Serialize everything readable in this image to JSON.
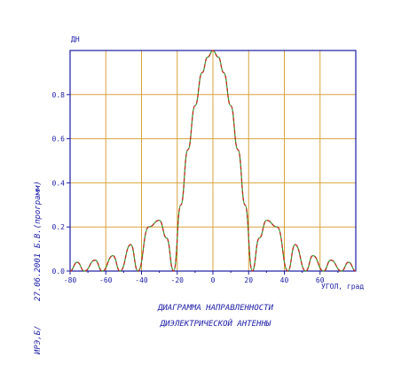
{
  "chart_data": {
    "type": "line",
    "ylabel": "ДН",
    "xlabel": "УГОЛ, град",
    "title_lines": [
      "ДИАГРАММА НАПРАВЛЕННОСТИ",
      "ДИЭЛЕКТРИЧЕСКОЙ АНТЕННЫ"
    ],
    "xlim": [
      -80,
      80
    ],
    "ylim": [
      0,
      1
    ],
    "x_ticks": [
      -80,
      -60,
      -40,
      -20,
      0,
      20,
      40,
      60
    ],
    "x_tick_labels": [
      "-80",
      "-60",
      "-40",
      "-20",
      "0",
      "20",
      "40",
      "60"
    ],
    "y_ticks": [
      0,
      0.2,
      0.4,
      0.6,
      0.8
    ],
    "y_tick_labels": [
      "0.0",
      "0.2",
      "0.4",
      "0.6",
      "0.8"
    ],
    "grid": true,
    "colors": {
      "series_1": "#2e9e2e",
      "series_2": "#cc2020",
      "grid": "#d9a23c",
      "axes": "#1a1aa6",
      "text": "#1a1aa6"
    },
    "series": [
      {
        "line_style": "solid",
        "points": [
          [
            -80,
            0.0
          ],
          [
            -76,
            0.04
          ],
          [
            -72,
            0.0
          ],
          [
            -66,
            0.05
          ],
          [
            -62,
            0.0
          ],
          [
            -56,
            0.07
          ],
          [
            -52,
            0.0
          ],
          [
            -46,
            0.12
          ],
          [
            -42,
            0.0
          ],
          [
            -36,
            0.2
          ],
          [
            -30,
            0.23
          ],
          [
            -26,
            0.15
          ],
          [
            -22,
            0.0
          ],
          [
            -18,
            0.3
          ],
          [
            -14,
            0.55
          ],
          [
            -10,
            0.75
          ],
          [
            -6,
            0.9
          ],
          [
            -3,
            0.97
          ],
          [
            0,
            1.0
          ],
          [
            3,
            0.97
          ],
          [
            6,
            0.9
          ],
          [
            10,
            0.75
          ],
          [
            14,
            0.55
          ],
          [
            18,
            0.3
          ],
          [
            22,
            0.0
          ],
          [
            26,
            0.15
          ],
          [
            30,
            0.23
          ],
          [
            36,
            0.2
          ],
          [
            42,
            0.0
          ],
          [
            46,
            0.12
          ],
          [
            52,
            0.0
          ],
          [
            56,
            0.07
          ],
          [
            62,
            0.0
          ],
          [
            66,
            0.05
          ],
          [
            72,
            0.0
          ],
          [
            76,
            0.04
          ],
          [
            80,
            0.0
          ]
        ]
      },
      {
        "line_style": "dashed",
        "points": [
          [
            -80,
            0.0
          ],
          [
            -76,
            0.04
          ],
          [
            -72,
            0.0
          ],
          [
            -66,
            0.05
          ],
          [
            -62,
            0.0
          ],
          [
            -56,
            0.07
          ],
          [
            -52,
            0.0
          ],
          [
            -46,
            0.12
          ],
          [
            -42,
            0.0
          ],
          [
            -36,
            0.2
          ],
          [
            -30,
            0.23
          ],
          [
            -26,
            0.15
          ],
          [
            -22,
            0.0
          ],
          [
            -18,
            0.3
          ],
          [
            -14,
            0.55
          ],
          [
            -10,
            0.75
          ],
          [
            -6,
            0.9
          ],
          [
            -3,
            0.97
          ],
          [
            0,
            1.0
          ],
          [
            3,
            0.97
          ],
          [
            6,
            0.9
          ],
          [
            10,
            0.75
          ],
          [
            14,
            0.55
          ],
          [
            18,
            0.3
          ],
          [
            22,
            0.0
          ],
          [
            26,
            0.15
          ],
          [
            30,
            0.23
          ],
          [
            36,
            0.2
          ],
          [
            42,
            0.0
          ],
          [
            46,
            0.12
          ],
          [
            52,
            0.0
          ],
          [
            56,
            0.07
          ],
          [
            62,
            0.0
          ],
          [
            66,
            0.05
          ],
          [
            72,
            0.0
          ],
          [
            76,
            0.04
          ],
          [
            80,
            0.0
          ]
        ]
      }
    ]
  },
  "side_notes": {
    "stamp": "ИРЭ,Б/",
    "date": "27.06.2001",
    "author": "Б.В.(программ)"
  }
}
